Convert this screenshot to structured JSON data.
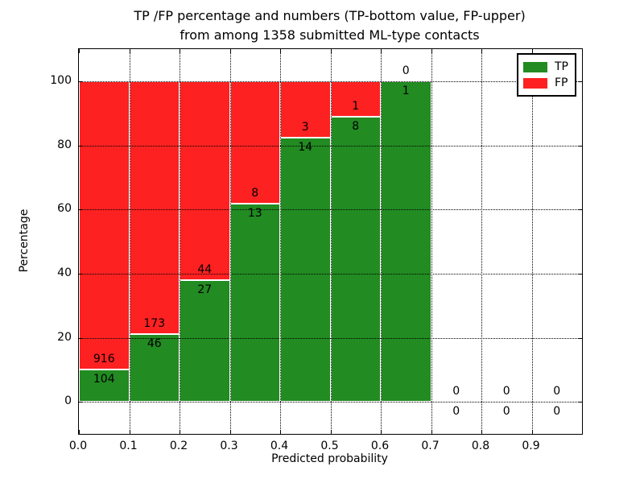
{
  "title": {
    "line1": "TP /FP percentage and numbers (TP-bottom value, FP-upper)",
    "line2": "from among 1358 submitted ML-type contacts"
  },
  "axes": {
    "x_label": "Predicted probability",
    "y_label": "Percentage",
    "x_ticks": [
      "0.0",
      "0.1",
      "0.2",
      "0.3",
      "0.4",
      "0.5",
      "0.6",
      "0.7",
      "0.8",
      "0.9"
    ],
    "y_ticks": [
      "0",
      "20",
      "40",
      "60",
      "80",
      "100"
    ]
  },
  "legend": {
    "items": [
      {
        "label": "TP",
        "color": "#228b22"
      },
      {
        "label": "FP",
        "color": "#fd2121"
      }
    ]
  },
  "chart_data": {
    "type": "bar",
    "stacked": true,
    "normalized_to_percent": 100,
    "title": "TP /FP percentage and numbers (TP-bottom value, FP-upper) from among 1358 submitted ML-type contacts",
    "xlabel": "Predicted probability",
    "ylabel": "Percentage",
    "xlim": [
      0.0,
      1.0
    ],
    "ylim": [
      -10,
      110
    ],
    "x_bin_width": 0.1,
    "total_contacts": 1358,
    "grid": "dotted",
    "legend_position": "upper right",
    "colors": {
      "tp": "#228b22",
      "fp": "#fd2121",
      "bar_edge": "#ffffff"
    },
    "series": [
      {
        "name": "TP",
        "values": [
          104,
          46,
          27,
          13,
          14,
          8,
          1,
          0,
          0,
          0
        ]
      },
      {
        "name": "FP",
        "values": [
          916,
          173,
          44,
          8,
          3,
          1,
          0,
          0,
          0,
          0
        ]
      }
    ],
    "bins": [
      {
        "x_start": 0.0,
        "x_end": 0.1,
        "tp_count": 104,
        "fp_count": 916,
        "tp_percent": 10.2
      },
      {
        "x_start": 0.1,
        "x_end": 0.2,
        "tp_count": 46,
        "fp_count": 173,
        "tp_percent": 21.0
      },
      {
        "x_start": 0.2,
        "x_end": 0.3,
        "tp_count": 27,
        "fp_count": 44,
        "tp_percent": 38.0
      },
      {
        "x_start": 0.3,
        "x_end": 0.4,
        "tp_count": 13,
        "fp_count": 8,
        "tp_percent": 61.9
      },
      {
        "x_start": 0.4,
        "x_end": 0.5,
        "tp_count": 14,
        "fp_count": 3,
        "tp_percent": 82.4
      },
      {
        "x_start": 0.5,
        "x_end": 0.6,
        "tp_count": 8,
        "fp_count": 1,
        "tp_percent": 88.9
      },
      {
        "x_start": 0.6,
        "x_end": 0.7,
        "tp_count": 1,
        "fp_count": 0,
        "tp_percent": 100.0
      },
      {
        "x_start": 0.7,
        "x_end": 0.8,
        "tp_count": 0,
        "fp_count": 0,
        "tp_percent": 0
      },
      {
        "x_start": 0.8,
        "x_end": 0.9,
        "tp_count": 0,
        "fp_count": 0,
        "tp_percent": 0
      },
      {
        "x_start": 0.9,
        "x_end": 1.0,
        "tp_count": 0,
        "fp_count": 0,
        "tp_percent": 0
      }
    ]
  }
}
